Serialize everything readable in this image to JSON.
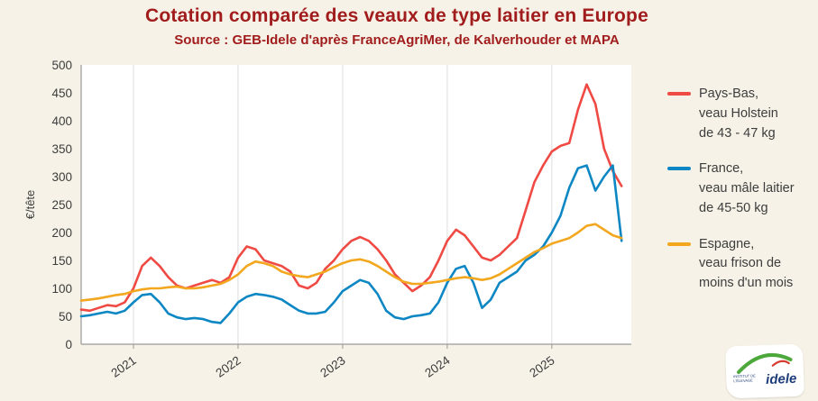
{
  "title": "Cotation comparée des veaux de type laitier en Europe",
  "subtitle": "Source : GEB-Idele d'après FranceAgriMer, de Kalverhouder et MAPA",
  "colors": {
    "background": "#f6f2e7",
    "plot_background": "#ffffff",
    "title_text": "#a11d1d",
    "axis_text": "#3c3c3c",
    "grid": "#dddddd",
    "axis_line": "#999999",
    "pays_bas": "#ef4a44",
    "france": "#0d87c4",
    "espagne": "#f2a71f"
  },
  "logo": {
    "text": "idele",
    "tagline": "institut de l'élevage"
  },
  "chart_data": {
    "type": "line",
    "title": "Cotation comparée des veaux de type laitier en Europe",
    "subtitle": "Source : GEB-Idele d'après FranceAgriMer, de Kalverhouder et MAPA",
    "ylabel": "€/tête",
    "xlabel": "",
    "ylim": [
      0,
      500
    ],
    "ytick_step": 50,
    "xlim": [
      2020.5,
      2025.76
    ],
    "xticks": [
      2021,
      2022,
      2023,
      2024,
      2025
    ],
    "xtick_labels": [
      "2021",
      "2022",
      "2023",
      "2024",
      "2025"
    ],
    "grid": "vertical-only",
    "legend_position": "right",
    "x_start": 2020.5,
    "x_step": 0.0833333,
    "x_unit": "monthly, Jul 2020 - Sep 2025",
    "series": [
      {
        "name": "Pays-Bas,\nveau Holstein\nde 43 - 47 kg",
        "color": "#ef4a44",
        "values": [
          62,
          60,
          65,
          70,
          68,
          75,
          100,
          140,
          155,
          140,
          120,
          105,
          100,
          105,
          110,
          115,
          110,
          120,
          155,
          175,
          170,
          150,
          145,
          140,
          130,
          105,
          100,
          110,
          135,
          150,
          170,
          185,
          192,
          185,
          170,
          150,
          125,
          110,
          95,
          105,
          120,
          150,
          185,
          205,
          195,
          175,
          155,
          150,
          160,
          175,
          190,
          240,
          290,
          320,
          345,
          355,
          360,
          420,
          465,
          430,
          350,
          310,
          283
        ]
      },
      {
        "name": "France,\nveau mâle laitier\nde 45-50 kg",
        "color": "#0d87c4",
        "values": [
          50,
          52,
          55,
          58,
          55,
          60,
          75,
          88,
          90,
          75,
          55,
          48,
          45,
          47,
          45,
          40,
          38,
          55,
          75,
          85,
          90,
          88,
          85,
          80,
          70,
          60,
          55,
          55,
          58,
          75,
          95,
          105,
          115,
          110,
          90,
          60,
          48,
          45,
          50,
          52,
          55,
          75,
          110,
          135,
          140,
          110,
          65,
          80,
          110,
          120,
          130,
          150,
          160,
          175,
          200,
          230,
          280,
          315,
          320,
          275,
          300,
          320,
          185
        ]
      },
      {
        "name": "Espagne,\nveau frison de\nmoins d'un mois",
        "color": "#f2a71f",
        "values": [
          78,
          80,
          82,
          85,
          88,
          90,
          95,
          98,
          100,
          100,
          102,
          103,
          100,
          100,
          102,
          105,
          108,
          115,
          125,
          140,
          148,
          145,
          140,
          130,
          125,
          122,
          120,
          125,
          130,
          138,
          145,
          150,
          152,
          148,
          140,
          130,
          120,
          112,
          108,
          108,
          110,
          112,
          115,
          118,
          120,
          118,
          115,
          118,
          125,
          135,
          145,
          155,
          165,
          172,
          180,
          185,
          190,
          200,
          212,
          215,
          205,
          195,
          190
        ]
      }
    ]
  }
}
